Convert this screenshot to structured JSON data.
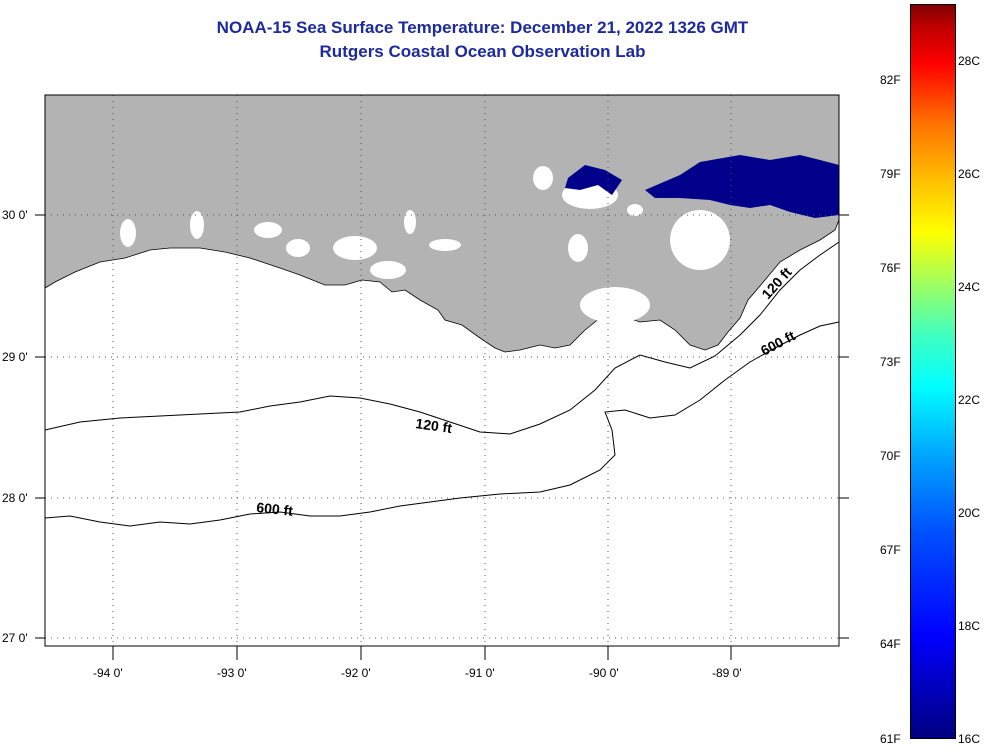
{
  "title": {
    "line1": "NOAA-15 Sea Surface Temperature:  December 21, 2022 1326 GMT",
    "line2": "Rutgers Coastal Ocean Observation Lab"
  },
  "map": {
    "lon_labels": [
      "-94 0'",
      "-93 0'",
      "-92 0'",
      "-91 0'",
      "-90 0'",
      "-89 0'"
    ],
    "lat_labels": [
      "30 0'",
      "29 0'",
      "28 0'",
      "27 0'"
    ],
    "contour_labels": [
      "120 ft",
      "120 ft",
      "600 ft",
      "600 ft"
    ],
    "colors": {
      "land": "#b3b3b3",
      "water": "#ffffff",
      "cold_sst": "#00008b",
      "title": "#1c2a9c"
    }
  },
  "colorbar": {
    "fahrenheit_labels": [
      "82F",
      "79F",
      "76F",
      "73F",
      "70F",
      "67F",
      "64F",
      "61F"
    ],
    "celsius_labels": [
      "28C",
      "26C",
      "24C",
      "22C",
      "20C",
      "18C",
      "16C"
    ],
    "range_c": [
      16,
      29
    ]
  }
}
